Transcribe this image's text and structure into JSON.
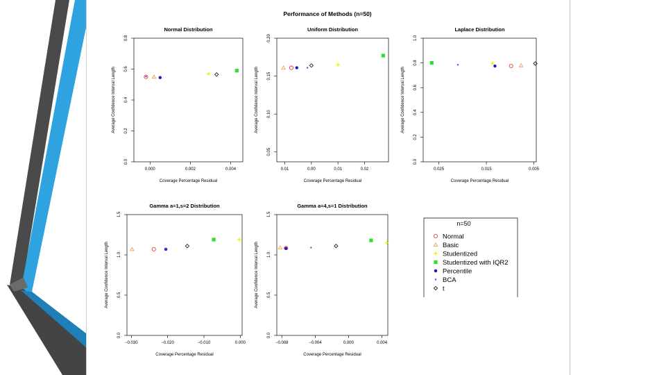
{
  "figure_title": "Performance of Methods (n=50)",
  "colors": {
    "deco_dark": "#4a4a4a",
    "deco_mid": "#6b6b6b",
    "deco_blue": "#2ea3e0",
    "deco_blue_dark": "#1f7fb8",
    "methods": {
      "Normal": "#ee3a3a",
      "Basic": "#f0a050",
      "Studentized": "#f2f200",
      "Studentized with IQR2": "#33dd33",
      "Percentile": "#1a1acc",
      "BCA": "#8a2be2",
      "t": "#222222"
    }
  },
  "legend": {
    "title": "n=50",
    "entries": [
      {
        "label": "Normal",
        "symbol": "circle-open",
        "color_key": "Normal"
      },
      {
        "label": "Basic",
        "symbol": "triangle-open",
        "color_key": "Basic"
      },
      {
        "label": "Studentized",
        "symbol": "plus",
        "color_key": "Studentized"
      },
      {
        "label": "Studentized with IQR2",
        "symbol": "square-filled",
        "color_key": "Studentized with IQR2"
      },
      {
        "label": "Percentile",
        "symbol": "circle-filled",
        "color_key": "Percentile"
      },
      {
        "label": "BCA",
        "symbol": "dot",
        "color_key": "BCA"
      },
      {
        "label": "t",
        "symbol": "diamond-open",
        "color_key": "t"
      }
    ]
  },
  "chart_data": [
    {
      "type": "scatter",
      "title": "Normal Distribution",
      "xlabel": "Coverage Percentage Residual",
      "ylabel": "Average Confidence Interval Length",
      "xlim": [
        -0.0008,
        0.0046
      ],
      "ylim": [
        0.0,
        0.8
      ],
      "x_ticks": [
        0.0,
        0.002,
        0.004
      ],
      "x_tick_labels": [
        "0.000",
        "0.002",
        "0.004"
      ],
      "y_ticks": [
        0.0,
        0.2,
        0.4,
        0.6,
        0.8
      ],
      "y_tick_labels": [
        "0.0",
        "0.2",
        "0.4",
        "0.6",
        "0.8"
      ],
      "points": [
        {
          "method": "Normal",
          "x": -0.0002,
          "y": 0.55
        },
        {
          "method": "Basic",
          "x": 0.0002,
          "y": 0.55
        },
        {
          "method": "Percentile",
          "x": 0.0005,
          "y": 0.545
        },
        {
          "method": "BCA",
          "x": -0.0002,
          "y": 0.552
        },
        {
          "method": "Studentized",
          "x": 0.0029,
          "y": 0.57
        },
        {
          "method": "t",
          "x": 0.0033,
          "y": 0.565
        },
        {
          "method": "Studentized with IQR2",
          "x": 0.0043,
          "y": 0.59
        }
      ]
    },
    {
      "type": "scatter",
      "title": "Uniform Distribution",
      "xlabel": "Coverage Percentage Residual",
      "ylabel": "Average Confidence Interval Length",
      "xlim": [
        -0.013,
        0.029
      ],
      "ylim": [
        0.037,
        0.2
      ],
      "x_ticks": [
        -0.01,
        0.0,
        0.01,
        0.02
      ],
      "x_tick_labels": [
        "0.01",
        "0.00",
        "0.01",
        "0.02"
      ],
      "y_ticks": [
        0.05,
        0.1,
        0.15,
        0.2
      ],
      "y_tick_labels": [
        "0.05",
        "0.10",
        "0.15",
        "0.20"
      ],
      "points": [
        {
          "method": "Basic",
          "x": -0.0105,
          "y": 0.161
        },
        {
          "method": "Normal",
          "x": -0.0075,
          "y": 0.161
        },
        {
          "method": "Percentile",
          "x": -0.0055,
          "y": 0.161
        },
        {
          "method": "BCA",
          "x": -0.0015,
          "y": 0.161
        },
        {
          "method": "t",
          "x": 0.0,
          "y": 0.164
        },
        {
          "method": "Studentized",
          "x": 0.01,
          "y": 0.165
        },
        {
          "method": "Studentized with IQR2",
          "x": 0.027,
          "y": 0.177
        }
      ]
    },
    {
      "type": "scatter",
      "title": "Laplace Distribution",
      "xlabel": "Coverage Percentage Residual",
      "ylabel": "Average Confidence Interval Length",
      "xlim": [
        -0.0283,
        -0.0045
      ],
      "ylim": [
        0.0,
        1.0
      ],
      "x_ticks": [
        -0.025,
        -0.015,
        -0.005
      ],
      "x_tick_labels": [
        "0.025",
        "0.015",
        "0.005"
      ],
      "y_ticks": [
        0.0,
        0.2,
        0.4,
        0.6,
        0.8,
        1.0
      ],
      "y_tick_labels": [
        "0.0",
        "0.2",
        "0.4",
        "0.6",
        "0.8",
        "1.0"
      ],
      "points": [
        {
          "method": "Studentized with IQR2",
          "x": -0.0265,
          "y": 0.8
        },
        {
          "method": "BCA",
          "x": -0.021,
          "y": 0.785
        },
        {
          "method": "Studentized",
          "x": -0.0137,
          "y": 0.795
        },
        {
          "method": "Percentile",
          "x": -0.0132,
          "y": 0.775
        },
        {
          "method": "Normal",
          "x": -0.0098,
          "y": 0.775
        },
        {
          "method": "Basic",
          "x": -0.0077,
          "y": 0.78
        },
        {
          "method": "t",
          "x": -0.0047,
          "y": 0.795
        }
      ]
    },
    {
      "type": "scatter",
      "title": "Gamma a=1,s=2 Distribution",
      "xlabel": "Coverage Percentage Residual",
      "ylabel": "Average Confidence Interval Length",
      "xlim": [
        -0.0312,
        0.0005
      ],
      "ylim": [
        0.0,
        1.5
      ],
      "x_ticks": [
        -0.03,
        -0.02,
        -0.01,
        0.0
      ],
      "x_tick_labels": [
        "−0.030",
        "−0.020",
        "−0.010",
        "0.000"
      ],
      "y_ticks": [
        0.0,
        0.5,
        1.0,
        1.5
      ],
      "y_tick_labels": [
        "0.0",
        "0.5",
        "1.0",
        "1.5"
      ],
      "points": [
        {
          "method": "Basic",
          "x": -0.0298,
          "y": 1.07
        },
        {
          "method": "Normal",
          "x": -0.0238,
          "y": 1.07
        },
        {
          "method": "Percentile",
          "x": -0.0205,
          "y": 1.07
        },
        {
          "method": "BCA",
          "x": -0.0205,
          "y": 1.075
        },
        {
          "method": "t",
          "x": -0.0146,
          "y": 1.11
        },
        {
          "method": "Studentized with IQR2",
          "x": -0.0073,
          "y": 1.19
        },
        {
          "method": "Studentized",
          "x": -0.0003,
          "y": 1.19
        }
      ]
    },
    {
      "type": "scatter",
      "title": "Gamma a=4,s=1 Distribution",
      "xlabel": "Coverage Percentage Residual",
      "ylabel": "Average Confidence Interval Length",
      "xlim": [
        -0.0086,
        0.0047
      ],
      "ylim": [
        0.0,
        1.5
      ],
      "x_ticks": [
        -0.008,
        -0.004,
        0.0,
        0.004
      ],
      "x_tick_labels": [
        "−0.008",
        "−0.004",
        "0.000",
        "0.004"
      ],
      "y_ticks": [
        0.0,
        0.5,
        1.0,
        1.5
      ],
      "y_tick_labels": [
        "0.0",
        "0.5",
        "1.0",
        "1.5"
      ],
      "points": [
        {
          "method": "Basic",
          "x": -0.0082,
          "y": 1.09
        },
        {
          "method": "Normal",
          "x": -0.0075,
          "y": 1.085
        },
        {
          "method": "Percentile",
          "x": -0.0075,
          "y": 1.08
        },
        {
          "method": "BCA",
          "x": -0.0045,
          "y": 1.09
        },
        {
          "method": "t",
          "x": -0.0015,
          "y": 1.11
        },
        {
          "method": "Studentized with IQR2",
          "x": 0.0027,
          "y": 1.18
        },
        {
          "method": "Studentized",
          "x": 0.0046,
          "y": 1.15
        }
      ]
    }
  ]
}
